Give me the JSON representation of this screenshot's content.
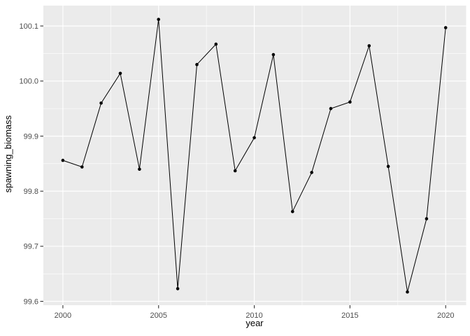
{
  "chart_data": {
    "type": "line",
    "title": "",
    "xlabel": "year",
    "ylabel": "spawning_biomass",
    "x": [
      2000,
      2001,
      2002,
      2003,
      2004,
      2005,
      2006,
      2007,
      2008,
      2009,
      2010,
      2011,
      2012,
      2013,
      2014,
      2015,
      2016,
      2017,
      2018,
      2019,
      2020
    ],
    "series": [
      {
        "name": "spawning_biomass",
        "values": [
          99.856,
          99.844,
          99.96,
          100.014,
          99.84,
          100.112,
          99.623,
          100.03,
          100.067,
          99.837,
          99.897,
          100.048,
          99.763,
          99.834,
          99.95,
          99.962,
          100.064,
          99.845,
          99.617,
          99.75,
          100.097
        ]
      }
    ],
    "markers": "points-and-line",
    "x_ticks": [
      2000,
      2005,
      2010,
      2015,
      2020
    ],
    "x_tick_labels": [
      "2000",
      "2005",
      "2010",
      "2015",
      "2020"
    ],
    "y_ticks": [
      99.6,
      99.7,
      99.8,
      99.9,
      100.0,
      100.1
    ],
    "y_tick_labels": [
      "99.6",
      "99.7",
      "99.8",
      "99.9",
      "100.0",
      "100.1"
    ],
    "x_minor_ticks": [
      2002.5,
      2007.5,
      2012.5,
      2017.5
    ],
    "y_minor_ticks": [
      99.65,
      99.75,
      99.85,
      99.95,
      100.05
    ],
    "x_domain": [
      1998.98,
      2021.07
    ],
    "y_domain": [
      99.593,
      100.137
    ],
    "grid": true,
    "legend": "none",
    "style": {
      "outer_bg": "#FFFFFF",
      "panel_bg": "#EBEBEB",
      "grid_major_color": "#FFFFFF",
      "grid_minor_color": "#FFFFFF",
      "line_color": "#000000",
      "point_color": "#000000",
      "tick_mark_color": "#333333",
      "tick_label_color": "#4D4D4D",
      "axis_title_color": "#000000"
    }
  }
}
